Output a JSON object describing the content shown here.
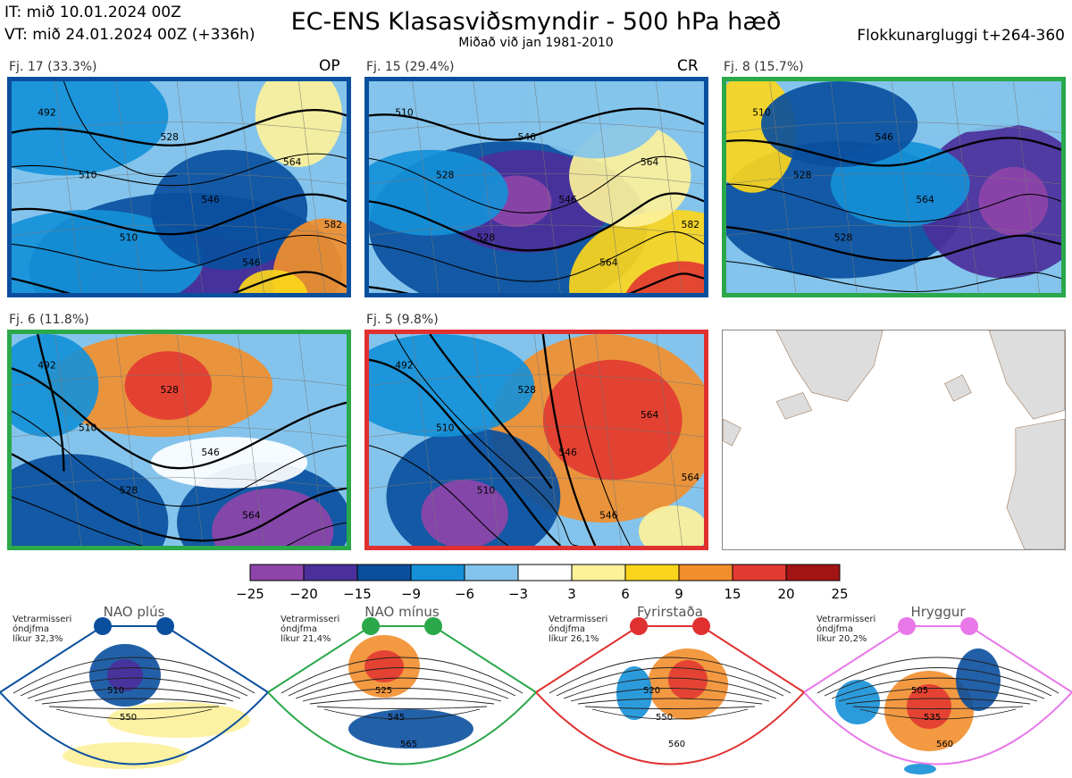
{
  "header": {
    "it_label": "IT: mið 10.01.2024 00Z",
    "vt_label": "VT: mið 24.01.2024 00Z  (+336h)",
    "title": "EC-ENS Klasasviðsmyndir - 500 hPa hæð",
    "subtitle": "Miðað við jan 1981-2010",
    "window_label": "Flokkunargluggi t+264-360"
  },
  "clusters": [
    {
      "label": "Fj. 17 (33.3%)",
      "tag": "OP",
      "regime_color": "#0a4f9e",
      "contours": [
        "492",
        "510",
        "510",
        "528",
        "546",
        "546",
        "564",
        "582"
      ]
    },
    {
      "label": "Fj. 15 (29.4%)",
      "tag": "CR",
      "regime_color": "#0a4f9e",
      "contours": [
        "510",
        "528",
        "528",
        "546",
        "546",
        "564",
        "564",
        "582"
      ]
    },
    {
      "label": "Fj. 8 (15.7%)",
      "tag": "",
      "regime_color": "#2aa84a",
      "contours": [
        "510",
        "528",
        "528",
        "546",
        "564"
      ]
    },
    {
      "label": "Fj. 6 (11.8%)",
      "tag": "",
      "regime_color": "#2aa84a",
      "contours": [
        "492",
        "510",
        "528",
        "528",
        "546",
        "564"
      ]
    },
    {
      "label": "Fj. 5 (9.8%)",
      "tag": "",
      "regime_color": "#e03030",
      "contours": [
        "492",
        "510",
        "510",
        "528",
        "546",
        "546",
        "564",
        "564"
      ]
    }
  ],
  "colorbar": {
    "ticks": [
      "−25",
      "−20",
      "−15",
      "−9",
      "−6",
      "−3",
      "3",
      "6",
      "9",
      "15",
      "20",
      "25"
    ],
    "colors": [
      "#8e44a8",
      "#4b2f9a",
      "#0a4f9e",
      "#1590d8",
      "#84c4ec",
      "#ffffff",
      "#fdf19a",
      "#fbd51c",
      "#f28e2c",
      "#e23a32",
      "#a31515"
    ]
  },
  "regimes": [
    {
      "title": "NAO plús",
      "color": "#0a4f9e",
      "info": [
        "Vetrarmisseri",
        "óndjfma",
        "líkur 32,3%"
      ],
      "contours": [
        "510",
        "550"
      ]
    },
    {
      "title": "NAO mínus",
      "color": "#2aa84a",
      "info": [
        "Vetrarmisseri",
        "óndjfma",
        "líkur 21,4%"
      ],
      "contours": [
        "525",
        "545",
        "565"
      ]
    },
    {
      "title": "Fyrirstaða",
      "color": "#e03030",
      "info": [
        "Vetrarmisseri",
        "óndjfma",
        "líkur 26,1%"
      ],
      "contours": [
        "520",
        "550",
        "560"
      ]
    },
    {
      "title": "Hryggur",
      "color": "#e878e8",
      "info": [
        "Vetrarmisseri",
        "óndjfma",
        "líkur 20,2%"
      ],
      "contours": [
        "505",
        "535",
        "560"
      ]
    }
  ],
  "chart_data": [
    {
      "type": "heatmap",
      "title": "EC-ENS Klasasviðsmyndir - 500 hPa hæð",
      "subtitle": "Miðað við jan 1981-2010",
      "panels": [
        "Fj. 17 (33.3%)",
        "Fj. 15 (29.4%)",
        "Fj. 8 (15.7%)",
        "Fj. 6 (11.8%)",
        "Fj. 5 (9.8%)"
      ],
      "colorbar_levels": [
        -25,
        -20,
        -15,
        -9,
        -6,
        -3,
        3,
        6,
        9,
        15,
        20,
        25
      ],
      "contour_units": "dam"
    }
  ]
}
